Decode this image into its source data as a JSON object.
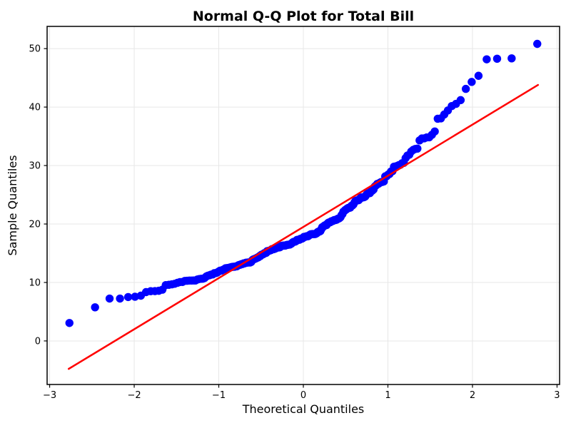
{
  "figure": {
    "background": "#ffffff",
    "frame_color": "#000000"
  },
  "chart_data": {
    "type": "scatter",
    "subtype": "normal-qq-plot",
    "title": "Normal Q-Q Plot for Total Bill",
    "xlabel": "Theoretical Quantiles",
    "ylabel": "Sample Quantiles",
    "xlim": [
      -3.03,
      3.03
    ],
    "ylim": [
      -7.45,
      53.8
    ],
    "x_ticks": [
      -3,
      -2,
      -1,
      0,
      1,
      2,
      3
    ],
    "y_ticks": [
      0,
      10,
      20,
      30,
      40,
      50
    ],
    "grid": true,
    "grid_color": "#e7e7e7",
    "marker_color": "#0000ff",
    "marker_radius": 5.7,
    "fit_line": {
      "color": "#ff0000",
      "width": 2.5,
      "slope": 8.75,
      "intercept": 19.5,
      "x_start": -2.775,
      "x_end": 2.775
    },
    "quantile_rule": "filliben",
    "n_points": 244,
    "sample_quantiles_sorted": [
      3.07,
      5.75,
      7.25,
      7.25,
      7.51,
      7.56,
      7.74,
      8.35,
      8.51,
      8.52,
      8.58,
      8.77,
      9.55,
      9.6,
      9.68,
      9.78,
      9.94,
      10.07,
      10.09,
      10.27,
      10.29,
      10.33,
      10.33,
      10.34,
      10.34,
      10.51,
      10.59,
      10.63,
      10.65,
      10.77,
      11.02,
      11.17,
      11.24,
      11.35,
      11.38,
      11.59,
      11.61,
      11.69,
      11.87,
      12.02,
      12.03,
      12.16,
      12.26,
      12.43,
      12.46,
      12.48,
      12.54,
      12.6,
      12.66,
      12.69,
      12.69,
      12.74,
      12.76,
      12.9,
      13.0,
      13.03,
      13.13,
      13.16,
      13.27,
      13.28,
      13.37,
      13.39,
      13.42,
      13.42,
      13.42,
      13.51,
      13.81,
      13.94,
      14.0,
      14.07,
      14.15,
      14.26,
      14.31,
      14.48,
      14.52,
      14.73,
      14.78,
      14.83,
      15.01,
      15.04,
      15.06,
      15.36,
      15.38,
      15.42,
      15.48,
      15.53,
      15.69,
      15.69,
      15.69,
      15.77,
      15.81,
      15.95,
      15.98,
      15.98,
      16.0,
      16.04,
      16.21,
      16.27,
      16.29,
      16.31,
      16.31,
      16.32,
      16.4,
      16.43,
      16.45,
      16.47,
      16.49,
      16.58,
      16.66,
      16.82,
      16.93,
      16.97,
      16.99,
      17.07,
      17.26,
      17.29,
      17.31,
      17.31,
      17.46,
      17.47,
      17.51,
      17.59,
      17.78,
      17.81,
      17.82,
      17.89,
      17.92,
      17.92,
      18.04,
      18.15,
      18.24,
      18.26,
      18.28,
      18.29,
      18.29,
      18.29,
      18.35,
      18.43,
      18.64,
      18.69,
      18.71,
      18.78,
      19.08,
      19.44,
      19.49,
      19.65,
      19.77,
      19.81,
      19.82,
      20.08,
      20.23,
      20.27,
      20.29,
      20.45,
      20.49,
      20.53,
      20.65,
      20.69,
      20.69,
      20.76,
      20.9,
      20.92,
      21.01,
      21.16,
      21.5,
      21.7,
      22.12,
      22.23,
      22.42,
      22.49,
      22.67,
      22.75,
      22.76,
      22.82,
      23.1,
      23.17,
      23.33,
      23.68,
      23.95,
      24.01,
      24.06,
      24.08,
      24.27,
      24.52,
      24.55,
      24.55,
      24.59,
      24.71,
      25.0,
      25.21,
      25.28,
      25.29,
      25.56,
      25.71,
      25.89,
      26.41,
      26.59,
      26.86,
      26.88,
      27.05,
      27.18,
      27.2,
      27.28,
      28.15,
      28.17,
      28.44,
      28.55,
      28.97,
      29.03,
      29.8,
      29.85,
      29.93,
      30.06,
      30.14,
      30.4,
      30.46,
      31.27,
      31.71,
      31.85,
      32.4,
      32.68,
      32.83,
      32.9,
      34.3,
      34.63,
      34.65,
      34.81,
      34.83,
      35.26,
      35.83,
      38.01,
      38.07,
      38.73,
      39.42,
      40.17,
      40.55,
      41.19,
      43.11,
      44.3,
      45.35,
      48.17,
      48.27,
      48.33,
      50.81
    ]
  }
}
